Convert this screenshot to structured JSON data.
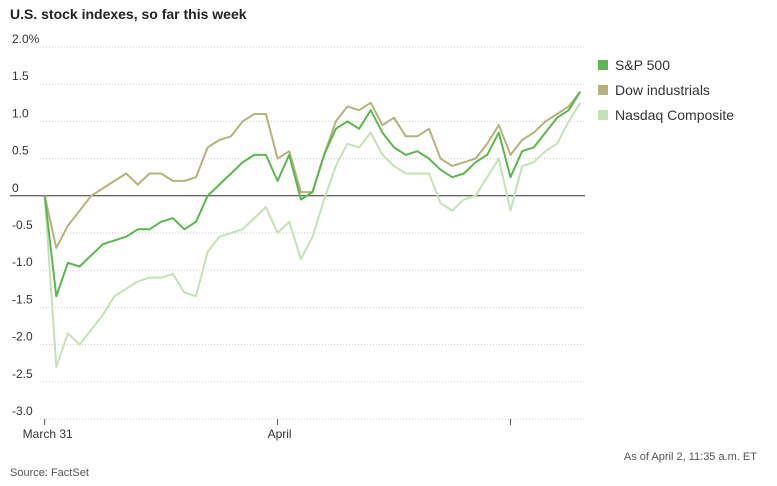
{
  "chart_data": {
    "type": "line",
    "title": "U.S. stock indexes, so far this week",
    "note": "As of April 2, 11:35 a.m. ET",
    "source": "Source: FactSet",
    "legend": "right",
    "grid": true,
    "xlim": [
      -0.02,
      2.32
    ],
    "xticks": [
      {
        "value": 0,
        "label": "March 31"
      },
      {
        "value": 1,
        "label": "April"
      },
      {
        "value": 2,
        "label": null
      }
    ],
    "ylim": [
      -3,
      2
    ],
    "yticks": [
      {
        "value": 2,
        "label": "2.0%"
      },
      1.5,
      {
        "value": 1,
        "label": "1.0"
      },
      0.5,
      0,
      -0.5,
      {
        "value": -1,
        "label": "-1.0"
      },
      -1.5,
      {
        "value": -2,
        "label": "-2.0"
      },
      -2.5,
      {
        "value": -3,
        "label": "-3.0"
      }
    ],
    "x": [
      0,
      0.05,
      0.1,
      0.15,
      0.2,
      0.25,
      0.3,
      0.35,
      0.4,
      0.45,
      0.5,
      0.55,
      0.6,
      0.65,
      0.7,
      0.75,
      0.8,
      0.85,
      0.9,
      0.95,
      1,
      1.05,
      1.1,
      1.15,
      1.2,
      1.25,
      1.3,
      1.35,
      1.4,
      1.45,
      1.5,
      1.55,
      1.6,
      1.65,
      1.7,
      1.75,
      1.8,
      1.85,
      1.9,
      1.95,
      2,
      2.05,
      2.1,
      2.15,
      2.2,
      2.25,
      2.3
    ],
    "series": [
      {
        "name": "Nasdaq Composite",
        "color": "#c4e2b6",
        "values": [
          0,
          -2.3,
          -1.85,
          -2.0,
          -1.8,
          -1.6,
          -1.35,
          -1.25,
          -1.15,
          -1.1,
          -1.1,
          -1.05,
          -1.3,
          -1.35,
          -0.75,
          -0.55,
          -0.5,
          -0.45,
          -0.3,
          -0.15,
          -0.5,
          -0.35,
          -0.85,
          -0.55,
          -0.05,
          0.4,
          0.7,
          0.65,
          0.85,
          0.55,
          0.4,
          0.3,
          0.3,
          0.3,
          -0.1,
          -0.2,
          -0.05,
          0.0,
          0.25,
          0.5,
          -0.2,
          0.4,
          0.45,
          0.6,
          0.7,
          1.0,
          1.25
        ]
      },
      {
        "name": "Dow industrials",
        "color": "#b6b27b",
        "values": [
          0,
          -0.7,
          -0.4,
          -0.2,
          0.0,
          0.1,
          0.2,
          0.3,
          0.15,
          0.3,
          0.3,
          0.2,
          0.2,
          0.25,
          0.65,
          0.75,
          0.8,
          1.0,
          1.1,
          1.1,
          0.5,
          0.6,
          0.05,
          0.05,
          0.55,
          1.0,
          1.2,
          1.15,
          1.25,
          0.95,
          1.05,
          0.8,
          0.8,
          0.9,
          0.5,
          0.4,
          0.45,
          0.5,
          0.7,
          0.95,
          0.55,
          0.75,
          0.85,
          1.0,
          1.1,
          1.2,
          1.4
        ]
      },
      {
        "name": "S&P 500",
        "color": "#5cb650",
        "values": [
          0,
          -1.35,
          -0.9,
          -0.95,
          -0.8,
          -0.65,
          -0.6,
          -0.55,
          -0.45,
          -0.45,
          -0.35,
          -0.3,
          -0.45,
          -0.35,
          0.0,
          0.15,
          0.3,
          0.45,
          0.55,
          0.55,
          0.2,
          0.55,
          -0.05,
          0.05,
          0.55,
          0.9,
          1.0,
          0.9,
          1.15,
          0.85,
          0.65,
          0.55,
          0.6,
          0.5,
          0.35,
          0.25,
          0.3,
          0.45,
          0.55,
          0.85,
          0.25,
          0.6,
          0.65,
          0.85,
          1.05,
          1.15,
          1.4
        ]
      }
    ]
  }
}
